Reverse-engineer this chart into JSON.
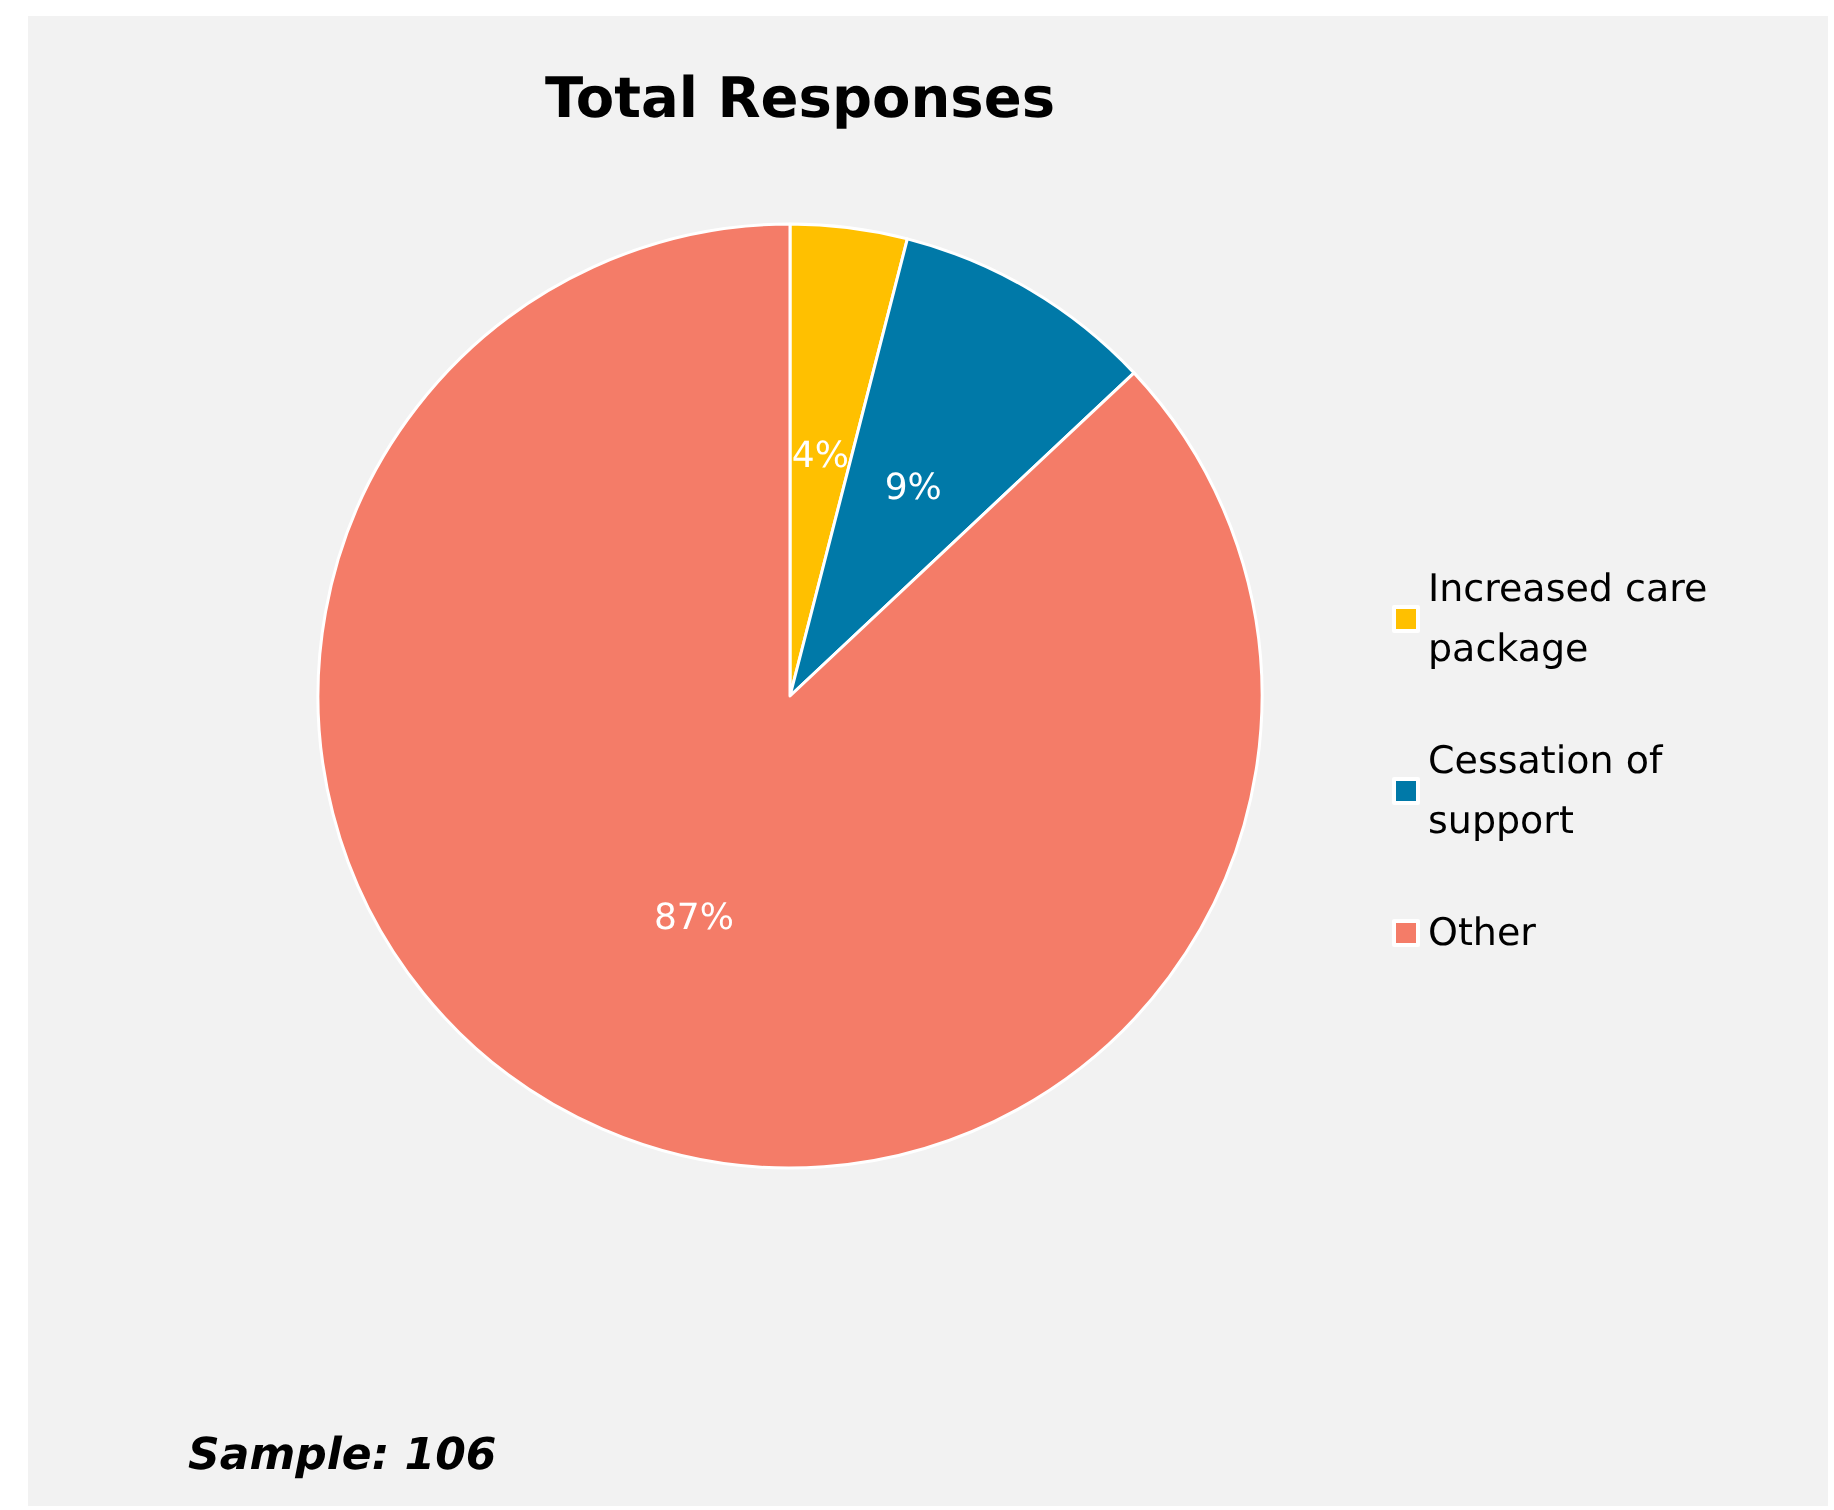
{
  "chart_data": {
    "type": "pie",
    "title": "Total Responses",
    "categories": [
      "Increased care package",
      "Cessation of support",
      "Other"
    ],
    "values": [
      4,
      9,
      87
    ],
    "value_labels": [
      "4%",
      "9%",
      "87%"
    ],
    "colors": [
      "#ffc000",
      "#0079a8",
      "#f47c68"
    ],
    "legend": "right",
    "annotations": [
      "Sample: 106"
    ]
  }
}
